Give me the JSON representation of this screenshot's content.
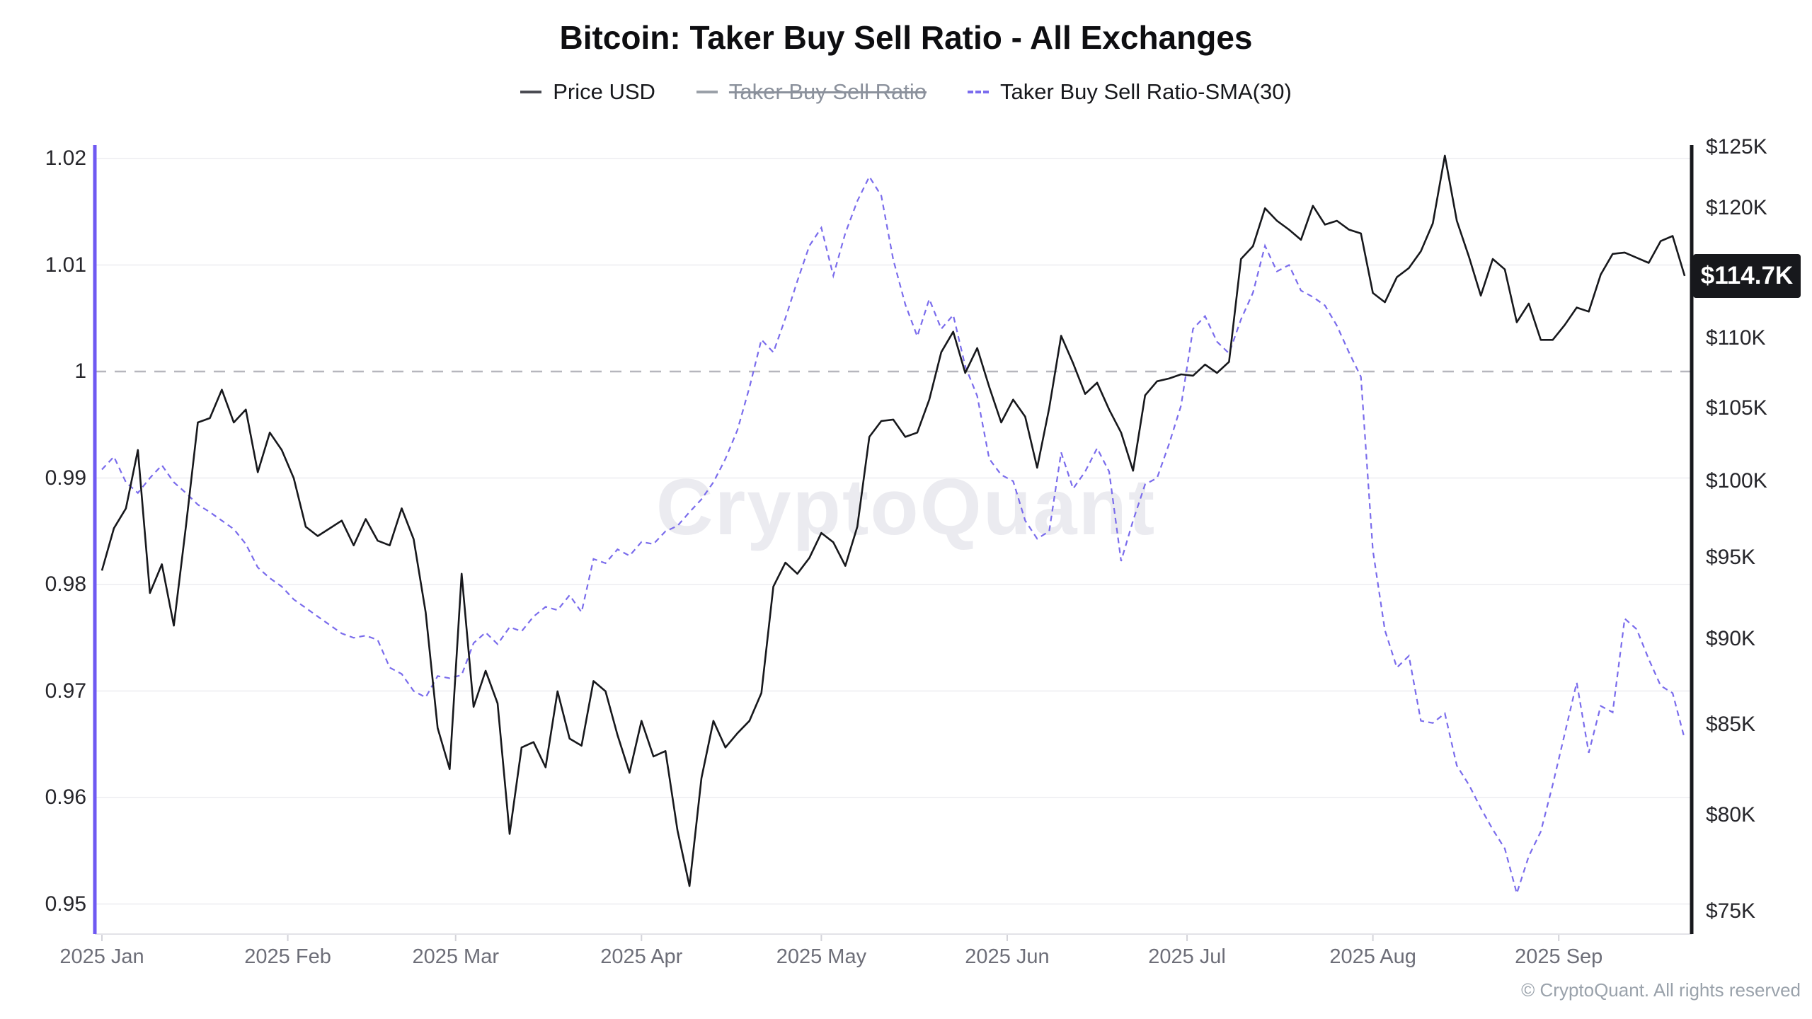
{
  "header": {
    "title": "Bitcoin: Taker Buy Sell Ratio - All Exchanges"
  },
  "legend": [
    {
      "label": "Price USD",
      "style": "solid",
      "color": "#4a4b52",
      "disabled": false
    },
    {
      "label": "Taker Buy Sell Ratio",
      "style": "solid",
      "color": "#9aa0a8",
      "disabled": true
    },
    {
      "label": "Taker Buy Sell Ratio-SMA(30)",
      "style": "dotted",
      "color": "#7b6cee",
      "disabled": false
    }
  ],
  "watermark": "CryptoQuant",
  "price_badge": "$114.7K",
  "footer": {
    "copyright": "© CryptoQuant. All rights reserved"
  },
  "chart_data": {
    "type": "line",
    "title": "Bitcoin: Taker Buy Sell Ratio - All Exchanges",
    "x_start": "2025-01-01",
    "x_step_days": 2,
    "x_ticks": [
      {
        "label": "2025 Jan",
        "day": 0
      },
      {
        "label": "2025 Feb",
        "day": 31
      },
      {
        "label": "2025 Mar",
        "day": 59
      },
      {
        "label": "2025 Apr",
        "day": 90
      },
      {
        "label": "2025 May",
        "day": 120
      },
      {
        "label": "2025 Jun",
        "day": 151
      },
      {
        "label": "2025 Jul",
        "day": 181
      },
      {
        "label": "2025 Aug",
        "day": 212
      },
      {
        "label": "2025 Sep",
        "day": 243
      }
    ],
    "left_axis": {
      "name": "Taker Buy Sell Ratio",
      "scale": "linear",
      "ticks": [
        "1.02",
        "1.01",
        "1",
        "0.99",
        "0.98",
        "0.97",
        "0.96",
        "0.95"
      ],
      "tick_values": [
        1.02,
        1.01,
        1.0,
        0.99,
        0.98,
        0.97,
        0.96,
        0.95
      ],
      "reference_line": 1.0,
      "axis_color": "#6f59f2"
    },
    "right_axis": {
      "name": "Price USD",
      "scale": "log",
      "ticks": [
        "$125K",
        "$120K",
        "$110K",
        "$105K",
        "$100K",
        "$95K",
        "$90K",
        "$85K",
        "$80K",
        "$75K"
      ],
      "tick_values": [
        125,
        120,
        110,
        105,
        100,
        95,
        90,
        85,
        80,
        75
      ],
      "last_price_label": "$114.7K",
      "last_price_value": 114.7,
      "axis_color": "#17181c"
    },
    "series": [
      {
        "name": "Price USD",
        "axis": "right",
        "style": "solid",
        "color": "#17181c",
        "unit": "kUSD",
        "values": [
          94.2,
          96.9,
          98.2,
          102.1,
          92.8,
          94.6,
          90.8,
          97.0,
          104.0,
          104.3,
          106.3,
          104.0,
          104.9,
          100.6,
          103.3,
          102.1,
          100.2,
          97.0,
          96.4,
          96.9,
          97.4,
          95.8,
          97.5,
          96.1,
          95.8,
          98.2,
          96.2,
          91.6,
          84.8,
          82.5,
          94.0,
          86.0,
          88.1,
          86.2,
          79.0,
          83.7,
          84.0,
          82.6,
          86.9,
          84.2,
          83.8,
          87.5,
          86.9,
          84.4,
          82.3,
          85.2,
          83.2,
          83.5,
          79.2,
          76.3,
          82.0,
          85.2,
          83.7,
          84.5,
          85.2,
          86.8,
          93.2,
          94.7,
          94.0,
          95.0,
          96.6,
          96.0,
          94.5,
          97.0,
          103.0,
          104.1,
          104.2,
          103.0,
          103.3,
          105.6,
          109.0,
          110.5,
          107.5,
          109.3,
          106.5,
          104.0,
          105.6,
          104.4,
          100.9,
          105.0,
          110.2,
          108.2,
          106.0,
          106.8,
          104.9,
          103.3,
          100.7,
          105.9,
          106.9,
          107.1,
          107.4,
          107.3,
          108.1,
          107.5,
          108.3,
          116.0,
          117.0,
          120.0,
          119.0,
          118.3,
          117.5,
          120.2,
          118.7,
          119.0,
          118.3,
          118.0,
          113.4,
          112.7,
          114.6,
          115.3,
          116.6,
          118.8,
          124.3,
          119.0,
          116.2,
          113.2,
          116.0,
          115.2,
          111.2,
          112.6,
          109.9,
          109.9,
          111.0,
          112.3,
          112.0,
          114.8,
          116.4,
          116.5,
          116.1,
          115.7,
          117.4,
          117.8,
          114.7
        ]
      },
      {
        "name": "Taker Buy Sell Ratio-SMA(30)",
        "axis": "left",
        "style": "dashed",
        "color": "#7a6cec",
        "unit": "ratio",
        "values": [
          0.9908,
          0.992,
          0.9896,
          0.9886,
          0.99,
          0.9912,
          0.9896,
          0.9886,
          0.9875,
          0.9868,
          0.986,
          0.9852,
          0.9838,
          0.9816,
          0.9806,
          0.9798,
          0.9786,
          0.9778,
          0.977,
          0.9762,
          0.9754,
          0.975,
          0.9752,
          0.9748,
          0.9722,
          0.9716,
          0.97,
          0.9694,
          0.9714,
          0.9712,
          0.9715,
          0.9745,
          0.9755,
          0.9744,
          0.976,
          0.9756,
          0.977,
          0.9779,
          0.9776,
          0.979,
          0.9774,
          0.9824,
          0.982,
          0.9833,
          0.9827,
          0.984,
          0.9838,
          0.985,
          0.9855,
          0.9868,
          0.988,
          0.9896,
          0.9918,
          0.9945,
          0.9985,
          1.003,
          1.0018,
          1.005,
          1.0085,
          1.0118,
          1.0135,
          1.009,
          1.013,
          1.016,
          1.0183,
          1.0165,
          1.0105,
          1.0063,
          1.0033,
          1.0068,
          1.004,
          1.0053,
          1.0005,
          0.9977,
          0.9918,
          0.9903,
          0.9897,
          0.986,
          0.9843,
          0.985,
          0.9924,
          0.989,
          0.9906,
          0.9928,
          0.9906,
          0.9822,
          0.986,
          0.9894,
          0.99,
          0.9932,
          0.9968,
          1.004,
          1.0052,
          1.0028,
          1.0017,
          1.0049,
          1.0074,
          1.0118,
          1.0094,
          1.01,
          1.0076,
          1.007,
          1.0062,
          1.0043,
          1.0018,
          0.9995,
          0.9832,
          0.9757,
          0.9722,
          0.9733,
          0.9672,
          0.967,
          0.9679,
          0.963,
          0.9612,
          0.959,
          0.957,
          0.9552,
          0.951,
          0.9545,
          0.9568,
          0.9612,
          0.966,
          0.9708,
          0.9642,
          0.9686,
          0.968,
          0.9768,
          0.9758,
          0.973,
          0.9705,
          0.9698,
          0.9655
        ]
      },
      {
        "name": "Taker Buy Sell Ratio",
        "axis": "left",
        "style": "solid",
        "color": "#9aa0a8",
        "hidden": true,
        "values": []
      }
    ]
  }
}
